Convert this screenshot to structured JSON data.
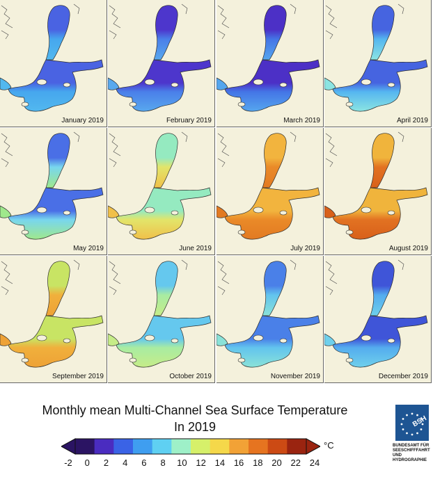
{
  "title_line1": "Monthly mean Multi-Channel Sea Surface Temperature",
  "title_line2": "In 2019",
  "colorbar": {
    "ticks": [
      "-2",
      "0",
      "2",
      "4",
      "6",
      "8",
      "10",
      "12",
      "14",
      "16",
      "18",
      "20",
      "22",
      "24"
    ],
    "unit": "°C",
    "colors": [
      "#2b1463",
      "#4a2cc0",
      "#3a63e6",
      "#3f9ef0",
      "#5fd0f2",
      "#9ef0c8",
      "#d6f06a",
      "#f5d84a",
      "#f2a236",
      "#e67420",
      "#cc4a14",
      "#9a2410"
    ]
  },
  "panels": [
    {
      "label": "January 2019",
      "north": "#4a63e2",
      "south": "#46a7ee",
      "coast": "#52b8ef"
    },
    {
      "label": "February 2019",
      "north": "#4d36cc",
      "south": "#4a7fe9",
      "coast": "#58a8ee"
    },
    {
      "label": "March 2019",
      "north": "#4c30c6",
      "south": "#4475e6",
      "coast": "#55a6ee"
    },
    {
      "label": "April 2019",
      "north": "#4664e0",
      "south": "#55b6f0",
      "coast": "#8be4e2"
    },
    {
      "label": "May 2019",
      "north": "#4a6fe6",
      "south": "#78d6ee",
      "coast": "#9fe88c"
    },
    {
      "label": "June 2019",
      "north": "#95eac0",
      "south": "#e2e56a",
      "coast": "#f0c04a"
    },
    {
      "label": "July 2019",
      "north": "#f2b43e",
      "south": "#ea8a28",
      "coast": "#e27a22"
    },
    {
      "label": "August 2019",
      "north": "#f0b43c",
      "south": "#e27222",
      "coast": "#d8601a"
    },
    {
      "label": "September 2019",
      "north": "#c8e464",
      "south": "#f0b03c",
      "coast": "#eea236"
    },
    {
      "label": "October 2019",
      "north": "#65c8ee",
      "south": "#a8eca2",
      "coast": "#c6ec88"
    },
    {
      "label": "November 2019",
      "north": "#4a80e8",
      "south": "#62c4ee",
      "coast": "#8ae2d8"
    },
    {
      "label": "December 2019",
      "north": "#3f55d8",
      "south": "#54acee",
      "coast": "#6fd0ec"
    }
  ],
  "logo": {
    "mark": "BSH",
    "text_lines": [
      "BUNDESAMT FÜR",
      "SEESCHIFFFAHRT",
      "UND",
      "HYDROGRAPHIE"
    ]
  }
}
